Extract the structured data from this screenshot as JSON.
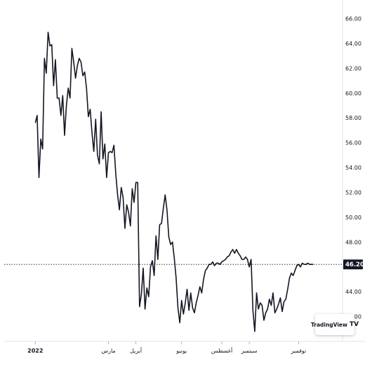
{
  "chart_data": {
    "type": "line",
    "title": "",
    "xlabel": "",
    "ylabel": "",
    "ylim": [
      40,
      67.5
    ],
    "y_ticks": [
      "66.00",
      "64.00",
      "62.00",
      "60.00",
      "58.00",
      "56.00",
      "54.00",
      "52.00",
      "50.00",
      "48.00",
      "46.00",
      "44.00",
      "42.00"
    ],
    "x_ticks": [
      {
        "label": "2022",
        "x": 0
      },
      {
        "label": "مارس",
        "x": 40
      },
      {
        "label": "أبريل",
        "x": 55
      },
      {
        "label": "يونيو",
        "x": 80
      },
      {
        "label": "أغسطس",
        "x": 102
      },
      {
        "label": "سبتمبر",
        "x": 117
      },
      {
        "label": "نوفمبر",
        "x": 144
      }
    ],
    "x_range": [
      -17,
      168
    ],
    "last_price": "46.20",
    "last_value": 46.2,
    "grid": false,
    "series": [
      {
        "x": [
          0,
          1,
          2,
          3,
          4,
          5,
          6,
          7,
          8,
          9,
          10,
          11,
          12,
          13,
          14,
          15,
          16,
          17,
          18,
          19,
          20,
          21,
          22,
          23,
          24,
          25,
          26,
          27,
          28,
          29,
          30,
          31,
          32,
          33,
          34,
          35,
          36,
          37,
          38,
          39,
          40,
          41,
          42,
          43,
          44,
          45,
          46,
          47,
          48,
          49,
          50,
          51,
          52,
          53,
          54,
          55,
          56,
          57,
          58,
          59,
          60,
          61,
          62,
          63,
          64,
          65,
          66,
          67,
          68,
          69,
          70,
          71,
          72,
          73,
          74,
          75,
          76,
          77,
          78,
          79,
          80,
          81,
          82,
          83,
          84,
          85,
          86,
          87,
          88,
          89,
          90,
          91,
          92,
          93,
          94,
          95,
          96,
          97,
          98,
          99,
          100,
          101,
          102,
          103,
          104,
          105,
          106,
          107,
          108,
          109,
          110,
          111,
          112,
          113,
          114,
          115,
          116,
          117,
          118,
          119,
          120,
          121,
          122,
          123,
          124,
          125,
          126,
          127,
          128,
          129,
          130,
          131,
          132,
          133,
          134,
          135,
          136,
          137,
          138,
          139,
          140,
          141,
          142,
          143,
          144,
          145,
          146,
          147,
          148,
          149,
          150,
          151,
          152
        ],
        "values": [
          57.6,
          58.2,
          53.2,
          56.3,
          55.5,
          62.8,
          61.6,
          64.9,
          63.8,
          63.9,
          60.6,
          62.7,
          59.6,
          59.6,
          58.2,
          59.8,
          56.6,
          59.0,
          60.4,
          59.6,
          63.6,
          62.5,
          61.2,
          62.2,
          62.8,
          62.5,
          61.4,
          61.7,
          60.4,
          58.1,
          58.7,
          56.8,
          55.3,
          57.9,
          55.0,
          54.3,
          58.5,
          54.7,
          55.9,
          53.2,
          55.2,
          55.3,
          55.2,
          55.8,
          53.5,
          51.8,
          50.6,
          52.4,
          51.6,
          49.1,
          51.0,
          50.4,
          49.3,
          52.3,
          51.2,
          52.8,
          52.8,
          42.8,
          43.8,
          45.9,
          42.6,
          44.3,
          43.6,
          46.0,
          46.5,
          45.3,
          48.5,
          46.6,
          49.4,
          49.5,
          50.7,
          51.8,
          50.6,
          48.4,
          47.8,
          48.0,
          46.7,
          45.1,
          42.7,
          41.5,
          43.3,
          42.2,
          43.1,
          44.2,
          42.5,
          43.9,
          42.7,
          42.3,
          43.1,
          43.7,
          44.4,
          43.9,
          45.0,
          45.7,
          45.9,
          46.2,
          46.2,
          46.4,
          46.1,
          46.3,
          46.3,
          46.2,
          46.4,
          46.5,
          46.6,
          46.8,
          46.9,
          47.2,
          47.4,
          47.1,
          47.4,
          47.1,
          46.9,
          46.6,
          46.6,
          46.8,
          46.6,
          46.0,
          46.6,
          42.5,
          40.8,
          43.9,
          42.6,
          43.1,
          42.9,
          41.7,
          42.3,
          42.6,
          43.4,
          42.9,
          43.9,
          42.3,
          42.6,
          43.0,
          43.5,
          42.4,
          43.2,
          43.4,
          44.2,
          45.1,
          45.5,
          45.3,
          45.7,
          46.1,
          46.2,
          46.0,
          46.3,
          46.2,
          46.2,
          46.3,
          46.2,
          46.2,
          46.2
        ]
      }
    ]
  },
  "branding": {
    "text": "TradingView",
    "mark": "TV"
  }
}
